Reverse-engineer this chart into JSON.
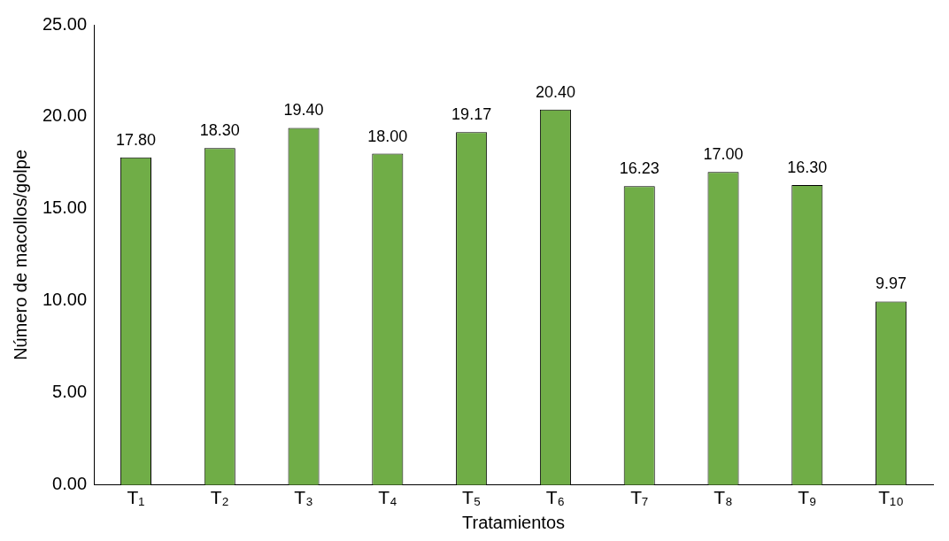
{
  "chart_data": {
    "type": "bar",
    "xlabel": "Tratamientos",
    "ylabel": "Número de macollos/golpe",
    "categories": [
      "T₁",
      "T₂",
      "T₃",
      "T₄",
      "T₅",
      "T₆",
      "T₇",
      "T₈",
      "T₉",
      "T₁₀"
    ],
    "values": [
      17.8,
      18.3,
      19.4,
      18.0,
      19.17,
      20.4,
      16.23,
      17.0,
      16.3,
      9.97
    ],
    "value_labels": [
      "17.80",
      "18.30",
      "19.40",
      "18.00",
      "19.17",
      "20.40",
      "16.23",
      "17.00",
      "16.30",
      "9.97"
    ],
    "color": "#70ad47",
    "ylim": [
      0,
      25
    ],
    "yticks": [
      {
        "value": 0,
        "label": "0.00"
      },
      {
        "value": 5,
        "label": "5.00"
      },
      {
        "value": 10,
        "label": "10.00"
      },
      {
        "value": 15,
        "label": "15.00"
      },
      {
        "value": 20,
        "label": "20.00"
      },
      {
        "value": 25,
        "label": "25.00"
      }
    ],
    "grid": false,
    "legend": false
  }
}
